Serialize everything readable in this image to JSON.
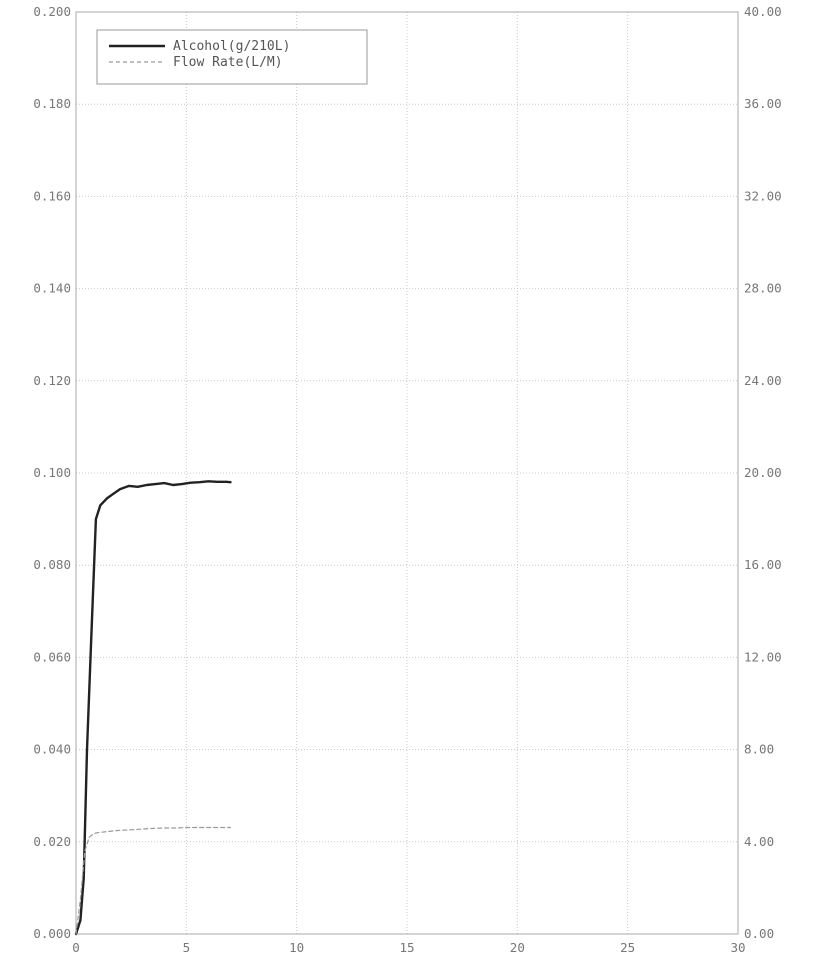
{
  "chart_data": {
    "type": "line",
    "title": "",
    "xlabel": "",
    "ylabel": "",
    "y2label": "",
    "xlim": [
      0,
      30
    ],
    "ylim": [
      0,
      0.2
    ],
    "y2lim": [
      0,
      40
    ],
    "grid": true,
    "legend_position": "top-left",
    "x_ticks": [
      0,
      5,
      10,
      15,
      20,
      25,
      30
    ],
    "x_tick_labels": [
      "0",
      "5",
      "10",
      "15",
      "20",
      "25",
      "30"
    ],
    "y_ticks": [
      0,
      0.02,
      0.04,
      0.06,
      0.08,
      0.1,
      0.12,
      0.14,
      0.16,
      0.18,
      0.2
    ],
    "y_tick_labels": [
      "0.000",
      "0.020",
      "0.040",
      "0.060",
      "0.080",
      "0.100",
      "0.120",
      "0.140",
      "0.160",
      "0.180",
      "0.200"
    ],
    "y2_ticks": [
      0,
      4,
      8,
      12,
      16,
      20,
      24,
      28,
      32,
      36,
      40
    ],
    "y2_tick_labels": [
      "0.00",
      "4.00",
      "8.00",
      "12.00",
      "16.00",
      "20.00",
      "24.00",
      "28.00",
      "32.00",
      "36.00",
      "40.00"
    ],
    "series": [
      {
        "name": "Alcohol(g/210L)",
        "axis": "left",
        "style": "solid",
        "color": "#222222",
        "x": [
          0,
          0.2,
          0.35,
          0.5,
          0.7,
          0.9,
          1.1,
          1.4,
          1.7,
          2.0,
          2.4,
          2.8,
          3.2,
          3.6,
          4.0,
          4.4,
          4.8,
          5.2,
          5.6,
          6.0,
          6.4,
          6.8,
          7.0
        ],
        "y": [
          0.0,
          0.003,
          0.012,
          0.04,
          0.065,
          0.09,
          0.093,
          0.0945,
          0.0955,
          0.0965,
          0.0972,
          0.097,
          0.0974,
          0.0976,
          0.0978,
          0.0974,
          0.0976,
          0.0979,
          0.098,
          0.0982,
          0.0981,
          0.0981,
          0.098
        ]
      },
      {
        "name": "Flow Rate(L/M)",
        "axis": "right",
        "style": "dashed",
        "color": "#9a9a9a",
        "x": [
          0,
          0.2,
          0.4,
          0.6,
          0.8,
          1.0,
          1.5,
          2.0,
          2.5,
          3.0,
          3.5,
          4.0,
          4.5,
          5.0,
          5.5,
          6.0,
          6.5,
          7.0
        ],
        "y": [
          0.0,
          1.5,
          3.6,
          4.2,
          4.35,
          4.4,
          4.45,
          4.5,
          4.52,
          4.55,
          4.58,
          4.6,
          4.6,
          4.62,
          4.62,
          4.62,
          4.62,
          4.62
        ]
      }
    ]
  }
}
